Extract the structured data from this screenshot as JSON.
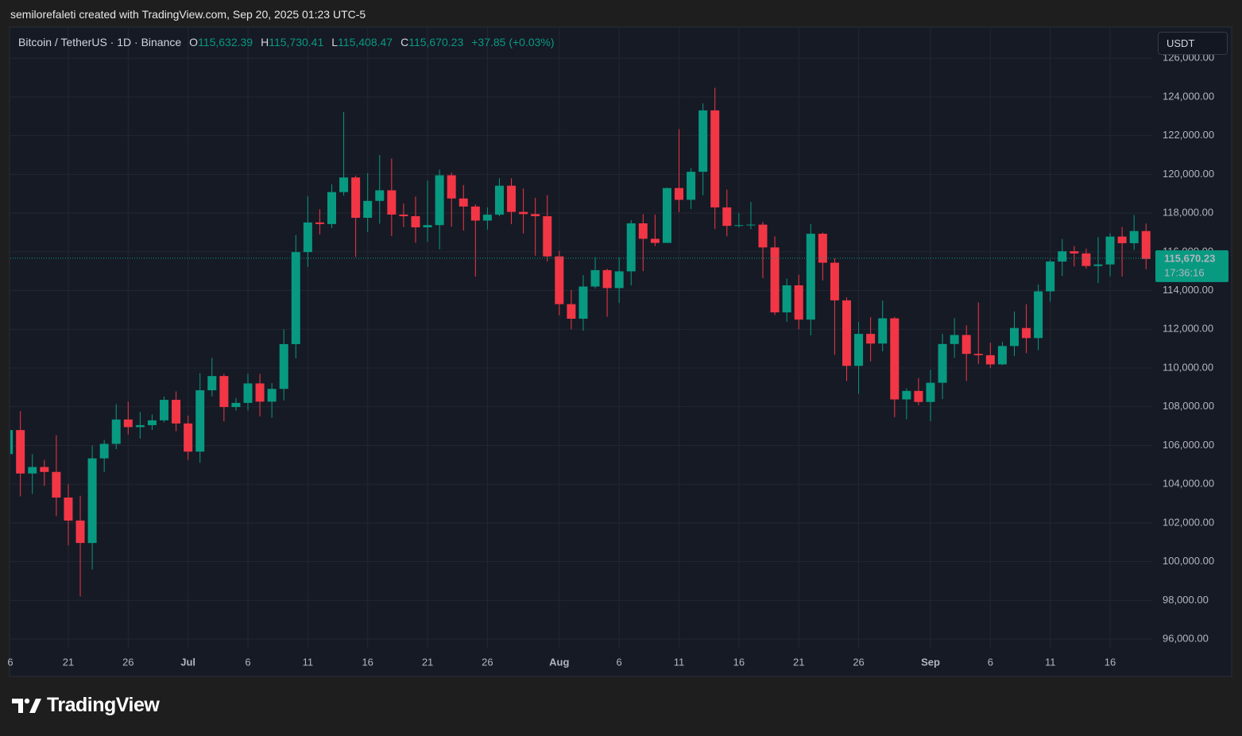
{
  "header": {
    "credit": "semilorefaleti created with TradingView.com, Sep 20, 2025 01:23 UTC-5",
    "symbol": "Bitcoin / TetherUS · 1D · Binance",
    "open_key": "O",
    "open": "115,632.39",
    "high_key": "H",
    "high": "115,730.41",
    "low_key": "L",
    "low": "115,408.47",
    "close_key": "C",
    "close": "115,670.23",
    "change": "+37.85 (+0.03%)",
    "currency": "USDT",
    "logo": "TradingView"
  },
  "chart_data": {
    "type": "candlestick",
    "categories": [
      "6",
      null,
      null,
      null,
      null,
      "21",
      null,
      null,
      null,
      null,
      "26",
      null,
      null,
      null,
      null,
      "Jul",
      null,
      null,
      null,
      null,
      "6",
      null,
      null,
      null,
      null,
      "11",
      null,
      null,
      null,
      null,
      "16",
      null,
      null,
      null,
      null,
      "21",
      null,
      null,
      null,
      null,
      "26",
      null,
      null,
      null,
      null,
      null,
      "Aug",
      null,
      null,
      null,
      null,
      "6",
      null,
      null,
      null,
      null,
      "11",
      null,
      null,
      null,
      null,
      "16",
      null,
      null,
      null,
      null,
      "21",
      null,
      null,
      null,
      null,
      "26",
      null,
      null,
      null,
      null,
      null,
      "Sep",
      null,
      null,
      null,
      null,
      "6",
      null,
      null,
      null,
      null,
      "11",
      null,
      null,
      null,
      null,
      "16",
      null,
      null,
      null
    ],
    "open": [
      105555,
      106794,
      104551,
      104886,
      104632,
      103309,
      102120,
      100963,
      105333,
      106083,
      107340,
      106947,
      107047,
      107296,
      108356,
      107135,
      105681,
      108849,
      109584,
      107984,
      108198,
      109203,
      108262,
      108922,
      111233,
      115987,
      117516,
      117435,
      119086,
      119841,
      117758,
      118630,
      119177,
      117924,
      117840,
      117265,
      117380,
      119954,
      118755,
      118340,
      117614,
      117919,
      119415,
      118062,
      117950,
      117840,
      115764,
      113298,
      112546,
      114208,
      115055,
      114129,
      114992,
      117472,
      116674,
      116462,
      119294,
      118686,
      120134,
      123306,
      118295,
      117342,
      117380,
      117405,
      116227,
      112872,
      114271,
      112500,
      116935,
      115438,
      113493,
      110111,
      111763,
      111262,
      112566,
      108377,
      108816,
      108246,
      109237,
      111240,
      111705,
      110730,
      110659,
      110187,
      111137,
      112065,
      111546,
      113960,
      115498,
      116029,
      115918,
      115268,
      115349,
      116788,
      116447,
      117073
    ],
    "high": [
      108952,
      107771,
      105550,
      105250,
      106524,
      104000,
      103400,
      106000,
      106290,
      108135,
      108272,
      107735,
      107600,
      108528,
      108789,
      107540,
      109730,
      110529,
      109700,
      108450,
      109700,
      109700,
      109216,
      111999,
      116868,
      118870,
      118200,
      119488,
      123218,
      119940,
      120063,
      120998,
      120820,
      118499,
      118856,
      119676,
      120247,
      120090,
      119450,
      118451,
      118297,
      119800,
      119800,
      119273,
      118792,
      118922,
      116052,
      114036,
      114800,
      115720,
      115127,
      115716,
      117630,
      117944,
      117919,
      119311,
      122335,
      120324,
      123667,
      124474,
      119216,
      117999,
      118575,
      117543,
      116800,
      114616,
      114821,
      117429,
      117000,
      115666,
      113642,
      112371,
      112625,
      113485,
      112644,
      108950,
      109480,
      109912,
      111771,
      112575,
      112206,
      113384,
      111305,
      111350,
      112924,
      113293,
      114313,
      115600,
      116665,
      116298,
      116165,
      116757,
      116964,
      117286,
      117900,
      117459
    ],
    "low": [
      104980,
      103371,
      103500,
      103910,
      102345,
      100837,
      98200,
      99588,
      104622,
      105808,
      106562,
      106356,
      106800,
      107200,
      106733,
      105250,
      105100,
      108530,
      107245,
      107800,
      107800,
      107500,
      107429,
      108324,
      110500,
      115222,
      116900,
      117224,
      118905,
      115736,
      117017,
      117453,
      116812,
      117277,
      116467,
      116515,
      116128,
      117301,
      117103,
      114723,
      117150,
      117840,
      117427,
      116950,
      115796,
      115500,
      112722,
      112000,
      111920,
      114107,
      112650,
      113356,
      114259,
      115000,
      116299,
      116460,
      118050,
      118207,
      118920,
      117180,
      116803,
      117257,
      117172,
      114640,
      112732,
      112380,
      112000,
      111684,
      114528,
      110680,
      109329,
      108666,
      110345,
      110862,
      107463,
      107350,
      108076,
      107255,
      108393,
      110528,
      109329,
      110206,
      110000,
      110150,
      110621,
      110766,
      110917,
      113430,
      114759,
      115245,
      115135,
      114384,
      114737,
      114720,
      116092,
      115100
    ],
    "close": [
      106794,
      104551,
      104886,
      104632,
      103309,
      102120,
      100963,
      105333,
      106083,
      107340,
      106947,
      107047,
      107296,
      108356,
      107135,
      105681,
      108849,
      109584,
      107984,
      108198,
      109203,
      108262,
      108922,
      111233,
      115987,
      117516,
      117435,
      119086,
      119841,
      117758,
      118630,
      119177,
      117924,
      117840,
      117265,
      117380,
      119954,
      118755,
      118340,
      117614,
      117919,
      119415,
      118062,
      117950,
      117840,
      115764,
      113298,
      112546,
      114208,
      115055,
      114129,
      114992,
      117472,
      116674,
      116462,
      119294,
      118686,
      120134,
      123306,
      118295,
      117342,
      117380,
      117405,
      116227,
      112872,
      114271,
      112500,
      116935,
      115438,
      113493,
      110111,
      111763,
      111262,
      112566,
      108377,
      108816,
      108246,
      109237,
      111240,
      111705,
      110730,
      110659,
      110187,
      111137,
      112065,
      111546,
      113960,
      115498,
      116029,
      115918,
      115268,
      115349,
      116788,
      116447,
      117073,
      115632
    ],
    "up_color": "#089981",
    "down_color": "#f23645",
    "ylim": [
      95550,
      127570
    ],
    "yticks": [
      {
        "value": 96000,
        "label": "96,000.00"
      },
      {
        "value": 98000,
        "label": "98,000.00"
      },
      {
        "value": 100000,
        "label": "100,000.00"
      },
      {
        "value": 102000,
        "label": "102,000.00"
      },
      {
        "value": 104000,
        "label": "104,000.00"
      },
      {
        "value": 106000,
        "label": "106,000.00"
      },
      {
        "value": 108000,
        "label": "108,000.00"
      },
      {
        "value": 110000,
        "label": "110,000.00"
      },
      {
        "value": 112000,
        "label": "112,000.00"
      },
      {
        "value": 114000,
        "label": "114,000.00"
      },
      {
        "value": 116000,
        "label": "116,000.00"
      },
      {
        "value": 118000,
        "label": "118,000.00"
      },
      {
        "value": 120000,
        "label": "120,000.00"
      },
      {
        "value": 122000,
        "label": "122,000.00"
      },
      {
        "value": 124000,
        "label": "124,000.00"
      },
      {
        "value": 126000,
        "label": "126,000.00"
      }
    ],
    "grid": true,
    "last_price": 115670.23,
    "last_price_label": "115,670.23",
    "countdown": "17:36:16"
  }
}
